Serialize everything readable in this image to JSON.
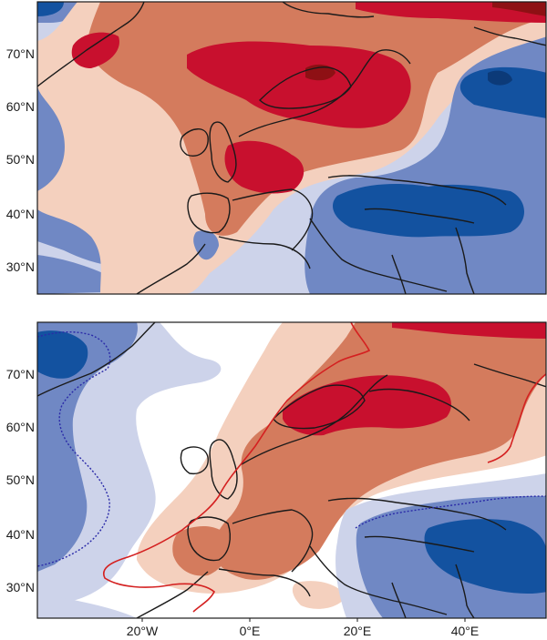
{
  "colors": {
    "dark_red": "#8e1014",
    "red": "#c8102e",
    "orange": "#d47b5d",
    "light_orange": "#f4d0be",
    "white": "#ffffff",
    "light_blue": "#cdd3ea",
    "blue": "#7088c4",
    "dark_blue": "#1352a0",
    "navy": "#0c3a78",
    "coastline": "#1a1a1a",
    "contour_red": "#d42020",
    "contour_blue": "#2a2aa8"
  },
  "top_panel": {
    "lat_labels": [
      "70°N",
      "60°N",
      "50°N",
      "40°N",
      "30°N"
    ]
  },
  "bottom_panel": {
    "lat_labels": [
      "70°N",
      "60°N",
      "50°N",
      "40°N",
      "30°N"
    ],
    "lon_labels": [
      "20°W",
      "0°E",
      "20°E",
      "40°E"
    ]
  }
}
